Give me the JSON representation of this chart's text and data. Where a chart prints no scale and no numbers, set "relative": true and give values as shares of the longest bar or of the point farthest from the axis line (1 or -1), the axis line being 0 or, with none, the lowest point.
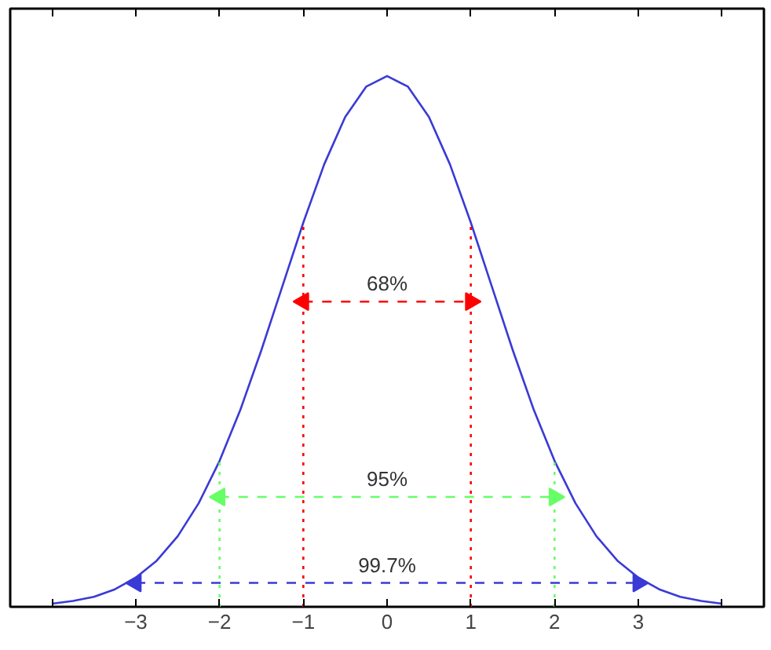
{
  "chart_data": {
    "type": "line",
    "relative": true,
    "x": [
      -4,
      -3.75,
      -3.5,
      -3.25,
      -3,
      -2.75,
      -2.5,
      -2.25,
      -2,
      -1.75,
      -1.5,
      -1.25,
      -1,
      -0.75,
      -0.5,
      -0.25,
      0,
      0.25,
      0.5,
      0.75,
      1,
      1.25,
      1.5,
      1.75,
      2,
      2.25,
      2.5,
      2.75,
      3,
      3.25,
      3.5,
      3.75,
      4
    ],
    "series": [
      {
        "color": "#3a3ad6",
        "values": [
          0.006,
          0.011,
          0.019,
          0.033,
          0.055,
          0.087,
          0.133,
          0.195,
          0.275,
          0.372,
          0.484,
          0.604,
          0.724,
          0.834,
          0.923,
          0.98,
          1,
          0.98,
          0.923,
          0.834,
          0.724,
          0.604,
          0.484,
          0.372,
          0.275,
          0.195,
          0.133,
          0.087,
          0.055,
          0.033,
          0.019,
          0.011,
          0.006
        ]
      },
      {
        "type": "line",
        "color": "#ff0000",
        "line_style": "dashed",
        "marker": "triangle",
        "x": [
          -1,
          1
        ],
        "values": [
          0.575,
          0.575
        ]
      },
      {
        "type": "line",
        "color": "#66ff66",
        "line_style": "dashed",
        "marker": "triangle",
        "x": [
          -2,
          2
        ],
        "values": [
          0.207,
          0.207
        ]
      },
      {
        "type": "line",
        "color": "#3a3ad6",
        "line_style": "dashed",
        "marker": "triangle",
        "x": [
          -3,
          3
        ],
        "values": [
          0.045,
          0.045
        ]
      }
    ],
    "xlim": [
      -4.5,
      4.5
    ],
    "xticks": [
      {
        "value": -4,
        "label": null
      },
      -3,
      -2,
      -1,
      0,
      1,
      2,
      3,
      {
        "value": 4,
        "label": null
      }
    ],
    "grid": false,
    "marker": "none",
    "line_style": "solid",
    "ref_lines": [
      {
        "axis": "x",
        "value": -1,
        "color": "#ff0000",
        "line_style": "dotted"
      },
      {
        "axis": "x",
        "value": 1,
        "color": "#ff0000",
        "line_style": "dotted"
      },
      {
        "axis": "x",
        "value": -2,
        "color": "#66ff66",
        "line_style": "dotted"
      },
      {
        "axis": "x",
        "value": 2,
        "color": "#66ff66",
        "line_style": "dotted"
      }
    ],
    "annotations": [
      "68%",
      "95%",
      "99.7%"
    ]
  }
}
